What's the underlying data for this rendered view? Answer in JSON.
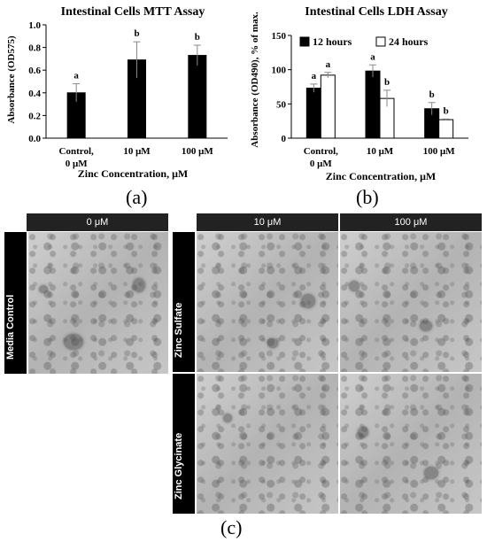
{
  "charts": [
    {
      "type": "bar",
      "title": "Intestinal Cells MTT Assay",
      "ylabel": "Absorbance (OD575)",
      "xlabel": "Zinc Concentration, μM",
      "categories": [
        "Control, 0 μM",
        "10 μM",
        "100 μM"
      ],
      "ylim": [
        0,
        1.0
      ],
      "yticks": [
        "0.0",
        "0.2",
        "0.4",
        "0.6",
        "0.8",
        "1.0"
      ],
      "series": [
        {
          "values": [
            0.4,
            0.69,
            0.73
          ],
          "errors": [
            0.08,
            0.16,
            0.09
          ],
          "color": "#000000",
          "letters": [
            "a",
            "b",
            "b"
          ]
        }
      ]
    },
    {
      "type": "bar",
      "title": "Intestinal Cells LDH Assay",
      "ylabel": "Absorbance (OD490), % of max.",
      "xlabel": "Zinc Concentration, μM",
      "categories": [
        "Control, 0 μM",
        "10 μM",
        "100 μM"
      ],
      "ylim": [
        0,
        150
      ],
      "yticks": [
        "0",
        "50",
        "100",
        "150"
      ],
      "legend": "top-left",
      "series": [
        {
          "name": "12 hours",
          "values": [
            73,
            98,
            43
          ],
          "errors": [
            6,
            9,
            9
          ],
          "color": "#000000",
          "letters": [
            "a",
            "a",
            "b"
          ]
        },
        {
          "name": "24 hours",
          "values": [
            92,
            58,
            27
          ],
          "errors": [
            4,
            12,
            1
          ],
          "color": "#ffffff",
          "letters": [
            "a",
            "b",
            "b"
          ]
        }
      ]
    }
  ],
  "panel_labels": [
    "(a)",
    "(b)",
    "(c)"
  ],
  "micrograph": {
    "columns": [
      "0 μM",
      "10 μM",
      "100 μM"
    ],
    "rows": [
      "Media Control",
      "Zinc Sulfate",
      "Zinc Glycinate"
    ]
  }
}
